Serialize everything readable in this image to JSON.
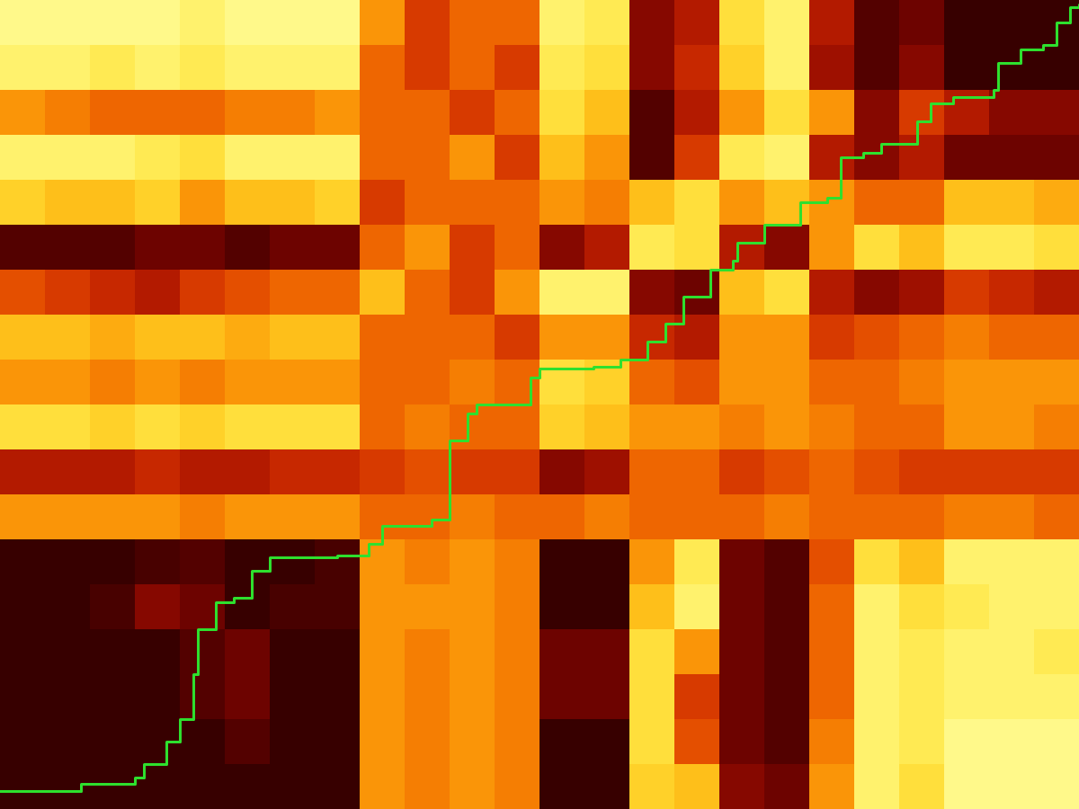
{
  "chart_data": {
    "type": "heatmap",
    "tick_labels": false,
    "xlim": [
      0,
      24
    ],
    "ylim": [
      0,
      18
    ],
    "value_range": [
      0,
      1
    ],
    "cells": [
      [
        0.95,
        0.95,
        0.95,
        0.95,
        0.9,
        0.95,
        0.95,
        0.95,
        0.6,
        0.4,
        0.5,
        0.5,
        0.9,
        0.85,
        0.2,
        0.3,
        0.8,
        0.9,
        0.3,
        0.1,
        0.15,
        0.05,
        0.05,
        0.05
      ],
      [
        0.9,
        0.9,
        0.85,
        0.9,
        0.85,
        0.9,
        0.9,
        0.9,
        0.5,
        0.4,
        0.5,
        0.4,
        0.85,
        0.8,
        0.2,
        0.35,
        0.75,
        0.9,
        0.25,
        0.1,
        0.2,
        0.05,
        0.05,
        0.05
      ],
      [
        0.6,
        0.55,
        0.5,
        0.5,
        0.5,
        0.55,
        0.55,
        0.6,
        0.5,
        0.5,
        0.4,
        0.5,
        0.8,
        0.7,
        0.1,
        0.3,
        0.6,
        0.8,
        0.6,
        0.2,
        0.4,
        0.3,
        0.2,
        0.2
      ],
      [
        0.9,
        0.9,
        0.9,
        0.85,
        0.8,
        0.9,
        0.9,
        0.9,
        0.5,
        0.5,
        0.6,
        0.4,
        0.7,
        0.6,
        0.1,
        0.4,
        0.85,
        0.9,
        0.3,
        0.2,
        0.3,
        0.15,
        0.15,
        0.15
      ],
      [
        0.75,
        0.7,
        0.7,
        0.75,
        0.6,
        0.7,
        0.7,
        0.75,
        0.4,
        0.5,
        0.5,
        0.5,
        0.6,
        0.55,
        0.7,
        0.8,
        0.6,
        0.7,
        0.6,
        0.5,
        0.5,
        0.7,
        0.7,
        0.65
      ],
      [
        0.1,
        0.1,
        0.1,
        0.15,
        0.15,
        0.1,
        0.15,
        0.15,
        0.5,
        0.6,
        0.4,
        0.5,
        0.2,
        0.3,
        0.85,
        0.8,
        0.3,
        0.2,
        0.6,
        0.8,
        0.7,
        0.85,
        0.85,
        0.8
      ],
      [
        0.45,
        0.4,
        0.35,
        0.3,
        0.4,
        0.45,
        0.5,
        0.5,
        0.7,
        0.5,
        0.4,
        0.6,
        0.9,
        0.9,
        0.2,
        0.15,
        0.7,
        0.8,
        0.3,
        0.2,
        0.25,
        0.4,
        0.35,
        0.3
      ],
      [
        0.7,
        0.7,
        0.65,
        0.7,
        0.7,
        0.65,
        0.7,
        0.7,
        0.5,
        0.5,
        0.5,
        0.4,
        0.6,
        0.6,
        0.35,
        0.3,
        0.6,
        0.6,
        0.4,
        0.45,
        0.5,
        0.55,
        0.5,
        0.5
      ],
      [
        0.6,
        0.6,
        0.55,
        0.6,
        0.55,
        0.6,
        0.6,
        0.6,
        0.5,
        0.5,
        0.55,
        0.5,
        0.8,
        0.75,
        0.5,
        0.45,
        0.6,
        0.6,
        0.5,
        0.5,
        0.55,
        0.6,
        0.6,
        0.6
      ],
      [
        0.8,
        0.8,
        0.75,
        0.8,
        0.75,
        0.8,
        0.8,
        0.8,
        0.5,
        0.55,
        0.5,
        0.5,
        0.75,
        0.7,
        0.6,
        0.6,
        0.55,
        0.6,
        0.55,
        0.5,
        0.5,
        0.6,
        0.6,
        0.55
      ],
      [
        0.3,
        0.3,
        0.3,
        0.35,
        0.3,
        0.3,
        0.35,
        0.35,
        0.4,
        0.45,
        0.4,
        0.4,
        0.2,
        0.25,
        0.5,
        0.5,
        0.4,
        0.45,
        0.5,
        0.45,
        0.4,
        0.4,
        0.4,
        0.4
      ],
      [
        0.6,
        0.6,
        0.6,
        0.6,
        0.55,
        0.6,
        0.6,
        0.6,
        0.5,
        0.5,
        0.55,
        0.5,
        0.5,
        0.55,
        0.5,
        0.5,
        0.5,
        0.55,
        0.5,
        0.5,
        0.5,
        0.55,
        0.55,
        0.5
      ],
      [
        0.05,
        0.05,
        0.05,
        0.08,
        0.1,
        0.05,
        0.05,
        0.08,
        0.6,
        0.55,
        0.6,
        0.55,
        0.05,
        0.05,
        0.6,
        0.85,
        0.15,
        0.1,
        0.45,
        0.8,
        0.7,
        0.9,
        0.9,
        0.9
      ],
      [
        0.05,
        0.05,
        0.08,
        0.2,
        0.15,
        0.05,
        0.08,
        0.08,
        0.6,
        0.6,
        0.6,
        0.55,
        0.05,
        0.05,
        0.7,
        0.9,
        0.15,
        0.1,
        0.5,
        0.9,
        0.8,
        0.85,
        0.9,
        0.9
      ],
      [
        0.05,
        0.05,
        0.05,
        0.05,
        0.1,
        0.15,
        0.05,
        0.05,
        0.6,
        0.55,
        0.6,
        0.55,
        0.15,
        0.15,
        0.8,
        0.6,
        0.15,
        0.1,
        0.5,
        0.9,
        0.85,
        0.9,
        0.9,
        0.85
      ],
      [
        0.05,
        0.05,
        0.05,
        0.05,
        0.1,
        0.15,
        0.05,
        0.05,
        0.6,
        0.55,
        0.6,
        0.55,
        0.15,
        0.15,
        0.8,
        0.4,
        0.15,
        0.1,
        0.5,
        0.9,
        0.85,
        0.9,
        0.9,
        0.9
      ],
      [
        0.05,
        0.05,
        0.05,
        0.05,
        0.05,
        0.1,
        0.05,
        0.05,
        0.6,
        0.55,
        0.6,
        0.55,
        0.05,
        0.05,
        0.8,
        0.45,
        0.15,
        0.1,
        0.55,
        0.9,
        0.85,
        0.95,
        0.95,
        0.95
      ],
      [
        0.05,
        0.05,
        0.05,
        0.05,
        0.05,
        0.05,
        0.05,
        0.05,
        0.6,
        0.55,
        0.6,
        0.55,
        0.05,
        0.05,
        0.75,
        0.7,
        0.2,
        0.15,
        0.6,
        0.9,
        0.8,
        0.95,
        0.95,
        0.95
      ]
    ],
    "path": {
      "type": "line",
      "color": "#2ee02e",
      "x": [
        0,
        1.8,
        3,
        3.2,
        3.7,
        4,
        4.3,
        4.4,
        4.8,
        5.2,
        5.6,
        6,
        7.5,
        8.2,
        8.5,
        9.6,
        10,
        10,
        10.4,
        10.6,
        11.5,
        11.8,
        12,
        13.2,
        13.8,
        14.4,
        14.8,
        15.2,
        15.8,
        16.3,
        16.4,
        17,
        17.8,
        18.4,
        18.7,
        19.2,
        19.6,
        20.4,
        20.7,
        21.2,
        22.1,
        22.2,
        22.7,
        23.2,
        23.5,
        23.8,
        24
      ],
      "y": [
        17.6,
        17.44,
        17.3,
        17,
        16.5,
        16,
        15,
        14,
        13.4,
        13.3,
        12.7,
        12.4,
        12.36,
        12.1,
        11.7,
        11.56,
        11.2,
        9.8,
        9.2,
        9,
        9,
        8.4,
        8.2,
        8.16,
        8,
        7.6,
        7.2,
        6.6,
        6,
        5.8,
        5.4,
        5,
        4.5,
        4.4,
        3.5,
        3.4,
        3.2,
        2.7,
        2.3,
        2.16,
        2,
        1.4,
        1.1,
        1,
        0.5,
        0.16,
        0.1
      ]
    }
  }
}
